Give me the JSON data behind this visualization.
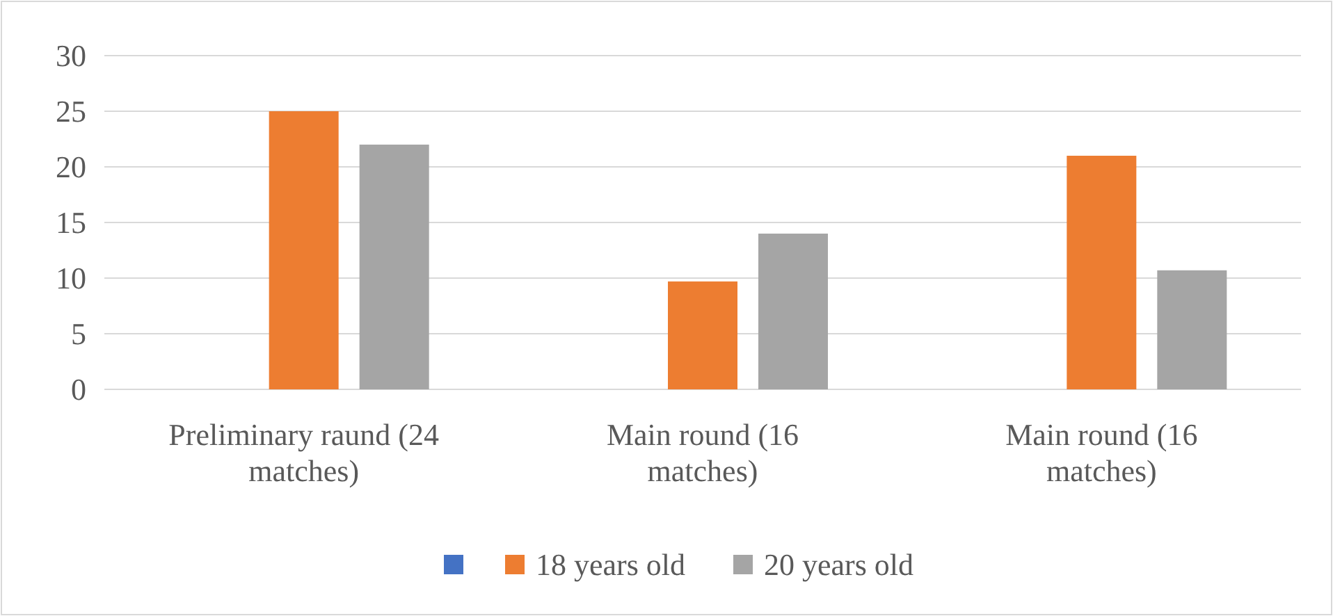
{
  "chart_data": {
    "type": "bar",
    "categories": [
      "Preliminary raund (24 matches)",
      "Main round (16 matches)",
      "Main round (16 matches)"
    ],
    "series": [
      {
        "color": "#4472c4",
        "values": [
          null,
          null,
          null
        ]
      },
      {
        "name": "18 years old",
        "color": "#ed7d31",
        "values": [
          25,
          9.7,
          21
        ]
      },
      {
        "name": "20 years old",
        "color": "#a5a5a5",
        "values": [
          22,
          14,
          10.7
        ]
      }
    ],
    "ylim": [
      0,
      30
    ],
    "yticks": [
      0,
      5,
      10,
      15,
      20,
      25,
      30
    ],
    "grid": "y",
    "legend": "bottom"
  }
}
